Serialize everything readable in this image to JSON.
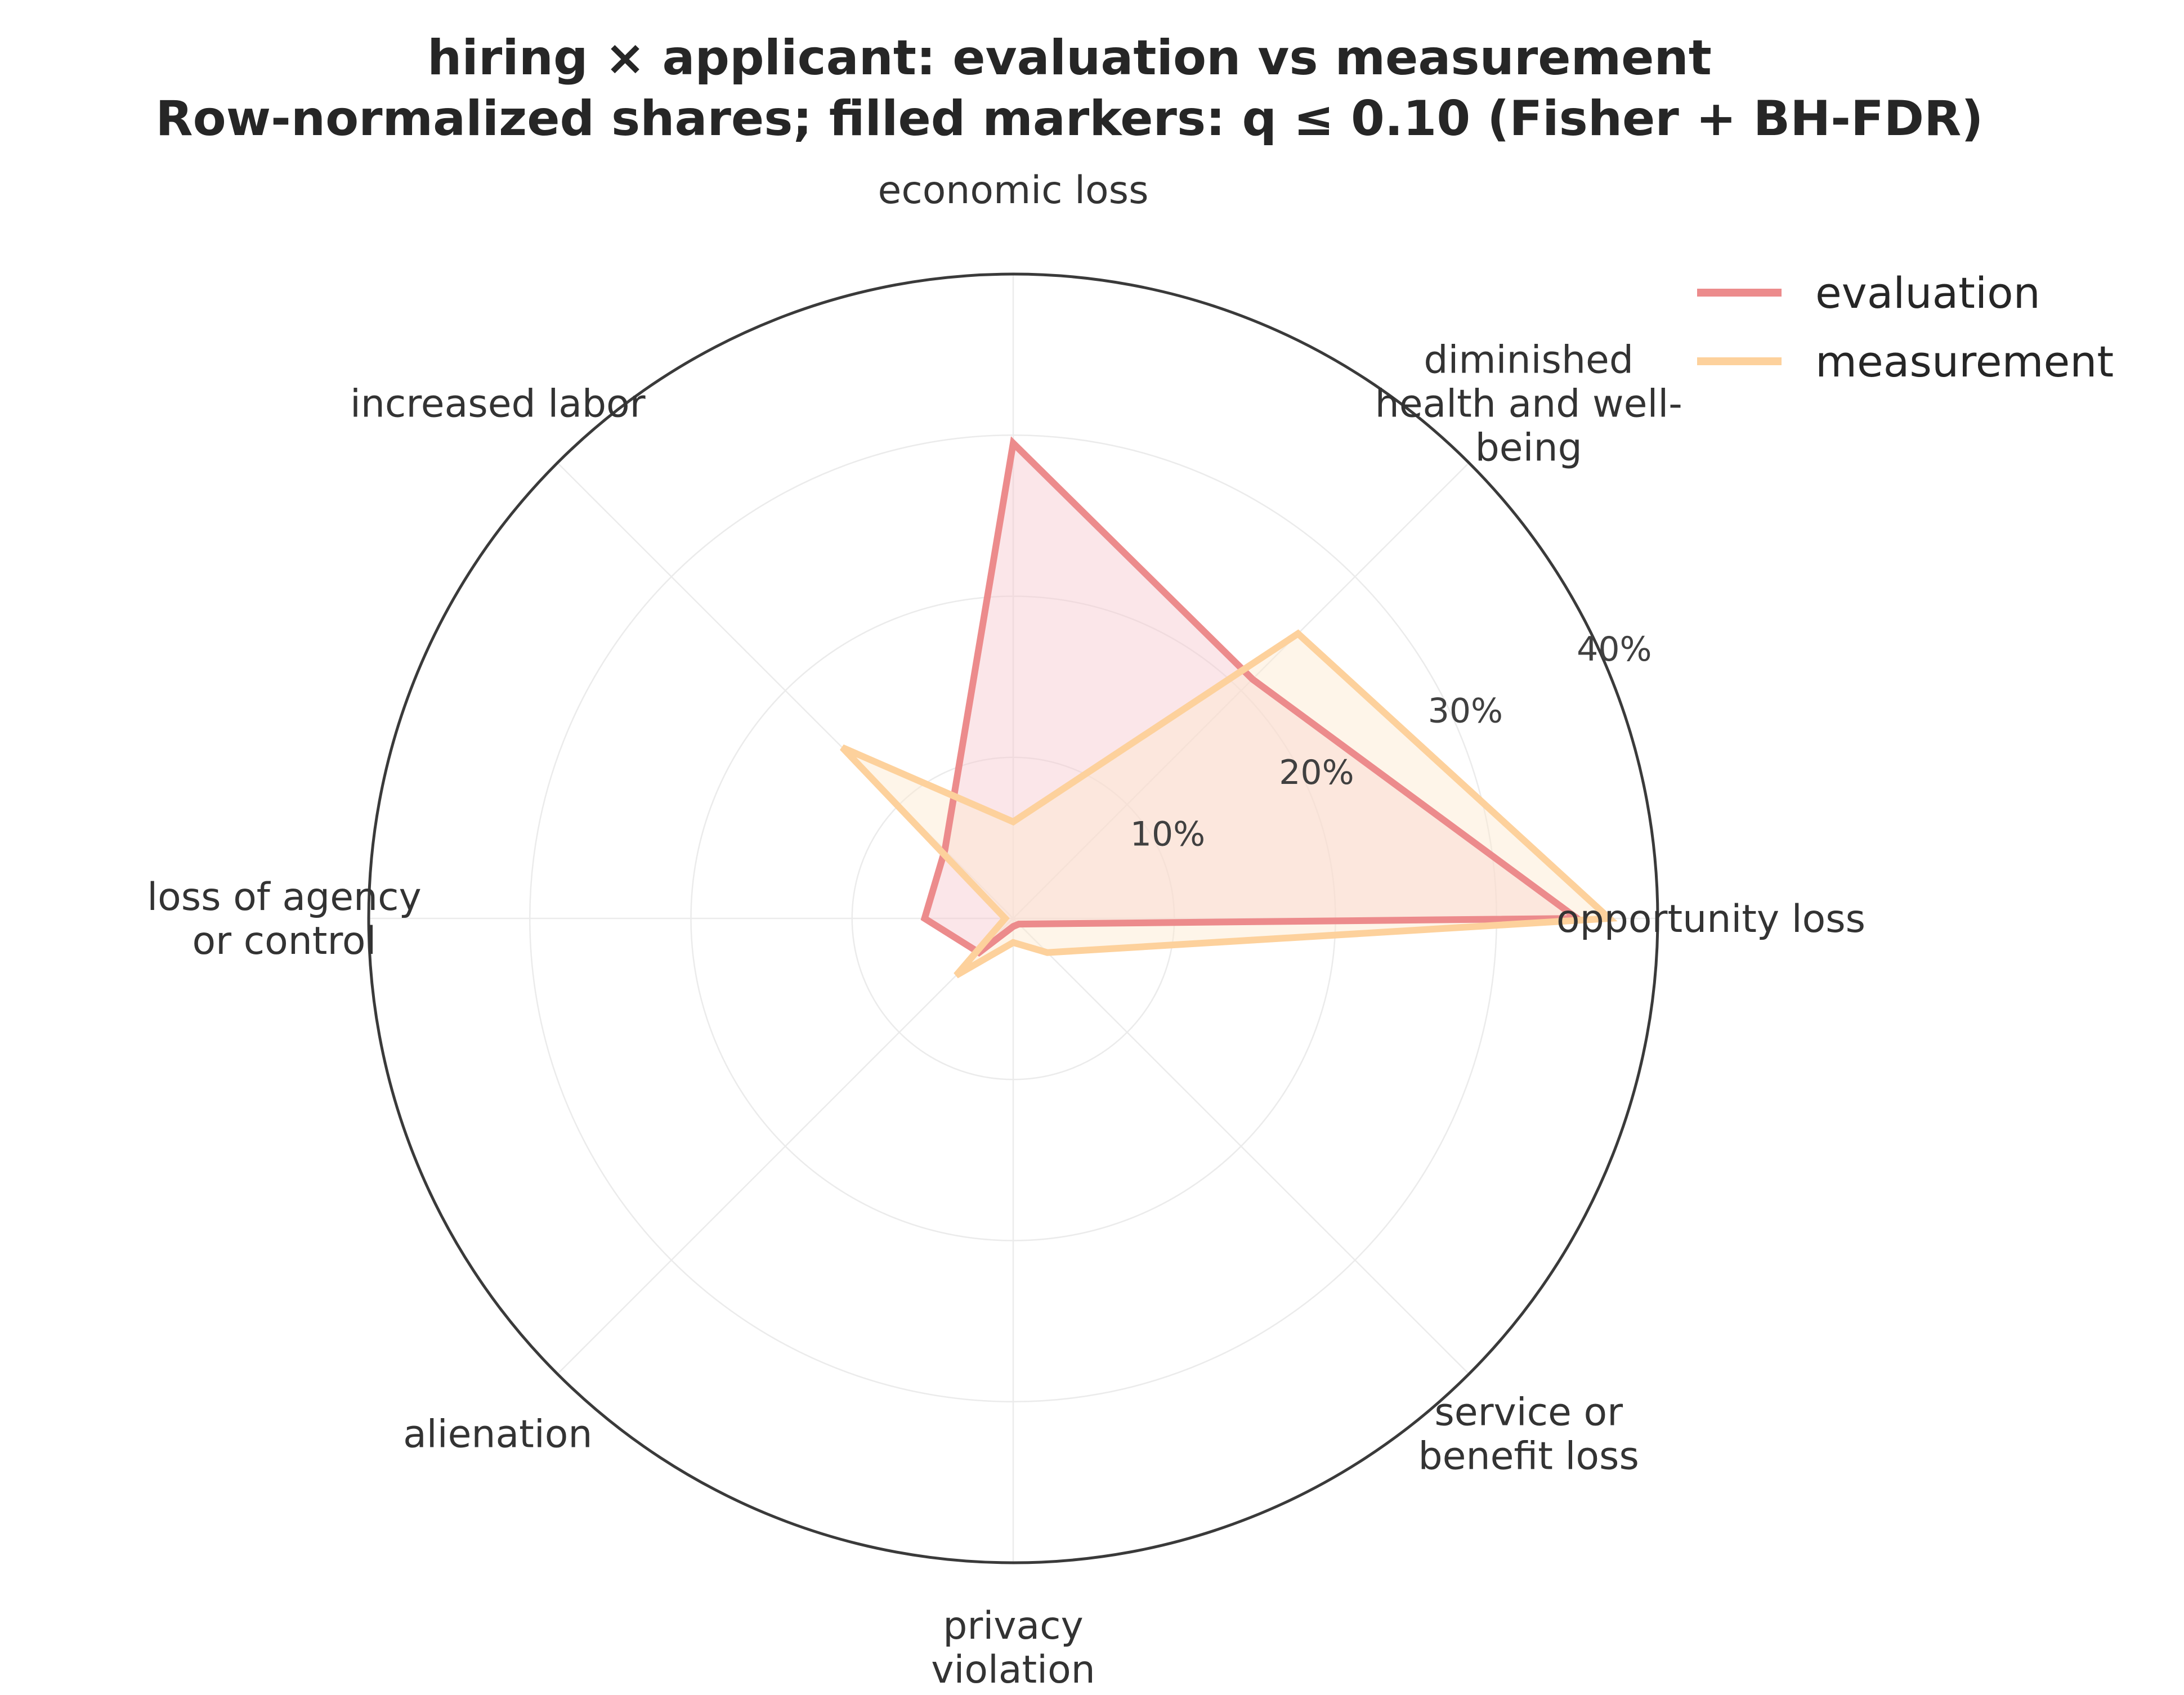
{
  "chart_data": {
    "type": "radar",
    "title_lines": [
      "hiring × applicant: evaluation vs measurement",
      "Row-normalized shares; filled markers: q ≤ 0.10 (Fisher + BH-FDR)"
    ],
    "categories": [
      "opportunity loss",
      "diminished\nhealth and well-\nbeing",
      "economic loss",
      "increased labor",
      "loss of agency\nor control",
      "alienation",
      "privacy\nviolation",
      "service or\nbenefit loss"
    ],
    "radial_ticks": [
      "10%",
      "20%",
      "30%",
      "40%"
    ],
    "radial_tick_values": [
      10,
      20,
      30,
      40
    ],
    "rlim": [
      0,
      40
    ],
    "series": [
      {
        "name": "evaluation",
        "color": "#ec8b8c",
        "fill": "#f7c8cf",
        "values": [
          35,
          21,
          29.5,
          6,
          5.5,
          3,
          0.5,
          0.5
        ]
      },
      {
        "name": "measurement",
        "color": "#fdd19c",
        "fill": "#fde9cf",
        "values": [
          37,
          25,
          6,
          15,
          0.5,
          5,
          1.5,
          3
        ]
      }
    ],
    "legend_position": "upper right",
    "grid": true
  }
}
